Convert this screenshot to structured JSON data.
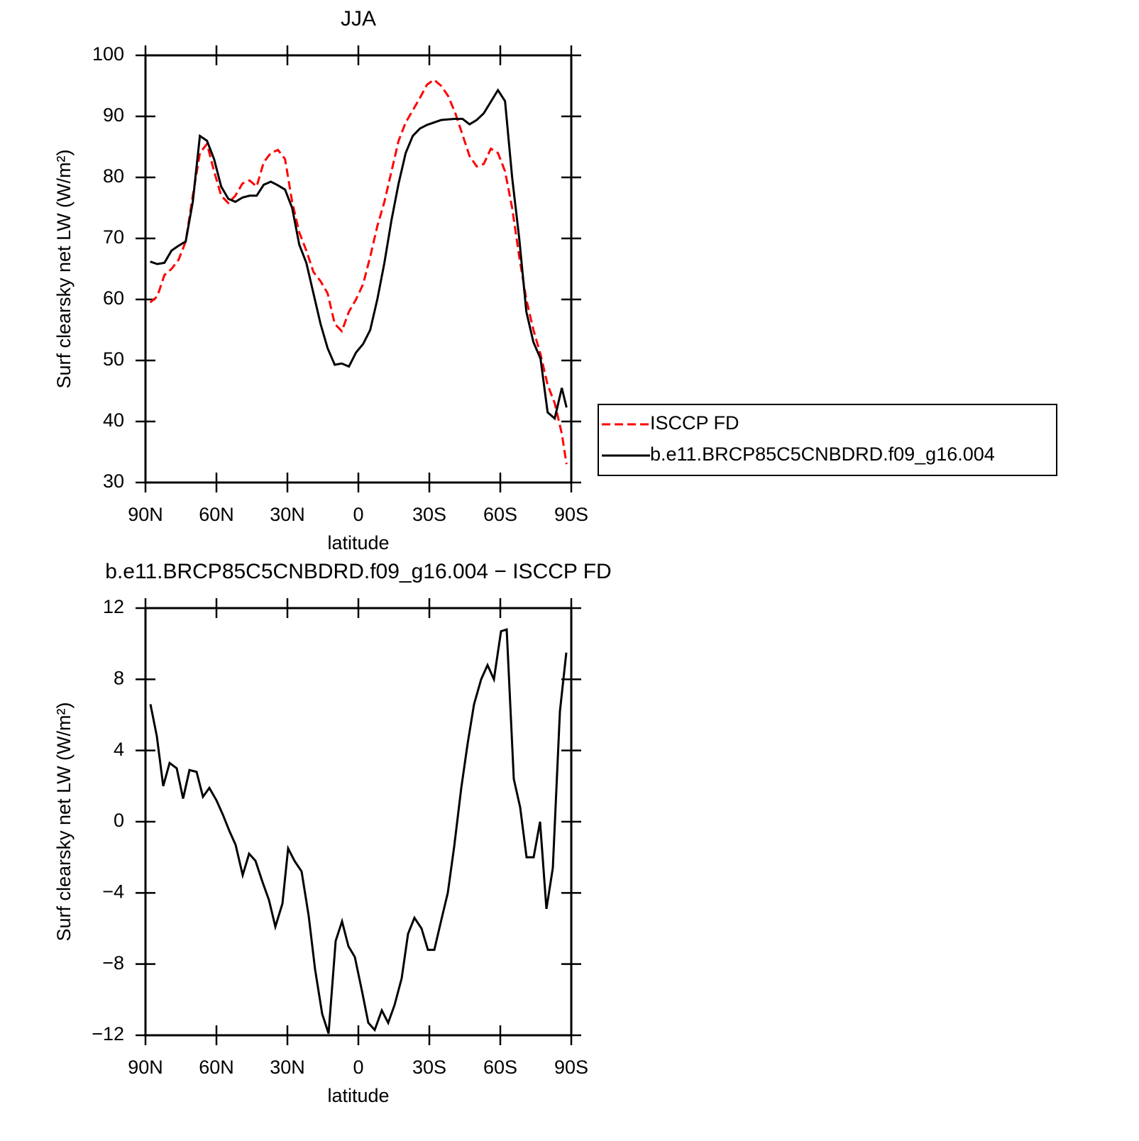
{
  "chart_data": [
    {
      "type": "line",
      "title": "JJA",
      "xlabel": "latitude",
      "ylabel": "Surf clearsky net LW (W/m²)",
      "x": [
        88,
        85,
        82,
        79,
        76,
        73,
        70,
        67,
        64,
        61,
        58,
        55,
        52,
        49,
        46,
        43,
        40,
        37,
        34,
        31,
        28,
        25,
        22,
        19,
        16,
        13,
        10,
        7,
        4,
        1,
        -2,
        -5,
        -8,
        -11,
        -14,
        -17,
        -20,
        -23,
        -26,
        -29,
        -32,
        -35,
        -38,
        -41,
        -44,
        -47,
        -50,
        -53,
        -56,
        -59,
        -62,
        -65,
        -68,
        -71,
        -74,
        -77,
        -80,
        -83,
        -86,
        -88
      ],
      "series": [
        {
          "name": "ISCCP FD",
          "color": "#ff0000",
          "linestyle": "dashed",
          "values": [
            59.5,
            60.5,
            64,
            65,
            66.5,
            69.5,
            77,
            84,
            85.5,
            81,
            77,
            75.8,
            77,
            79,
            79.5,
            78.5,
            82.5,
            84,
            84.5,
            83,
            76,
            71,
            68,
            64.5,
            63,
            61,
            56,
            54.8,
            58,
            60,
            62.5,
            67,
            72,
            76,
            81,
            86,
            89,
            91,
            93,
            95.2,
            96,
            95,
            93.3,
            90.5,
            87,
            83.5,
            81.8,
            82.2,
            84.7,
            84,
            81,
            75,
            67,
            60,
            55,
            51,
            46,
            43,
            38,
            33
          ]
        },
        {
          "name": "b.e11.BRCP85C5CNBDRD.f09_g16.004",
          "color": "#000000",
          "linestyle": "solid",
          "values": [
            66.2,
            65.8,
            66,
            68,
            68.8,
            69.5,
            76,
            86.8,
            86,
            83,
            78.5,
            76.5,
            76,
            76.7,
            77,
            77,
            78.8,
            79.3,
            78.7,
            78,
            75,
            69,
            66,
            61,
            56,
            52,
            49.3,
            49.5,
            49,
            51.3,
            52.7,
            55,
            60,
            66,
            73,
            79,
            84,
            86.8,
            88,
            88.6,
            89,
            89.4,
            89.5,
            89.6,
            89.6,
            88.7,
            89.4,
            90.5,
            92.4,
            94.3,
            92.5,
            80,
            70,
            58,
            53,
            50.3,
            41.5,
            40.5,
            45.5,
            42.3
          ]
        }
      ],
      "xlim": [
        90,
        -90
      ],
      "xticks": [
        {
          "value": 90,
          "label": "90N"
        },
        {
          "value": 60,
          "label": "60N"
        },
        {
          "value": 30,
          "label": "30N"
        },
        0,
        {
          "value": -30,
          "label": "30S"
        },
        {
          "value": -60,
          "label": "60S"
        },
        {
          "value": -90,
          "label": "90S"
        }
      ],
      "ylim": [
        30,
        100
      ],
      "yticks": [
        30,
        40,
        50,
        60,
        70,
        80,
        90,
        100
      ],
      "legend": "right"
    },
    {
      "type": "line",
      "title": "b.e11.BRCP85C5CNBDRD.f09_g16.004 − ISCCP FD",
      "xlabel": "latitude",
      "ylabel": "Surf clearsky net LW (W/m²)",
      "x": [
        87.9,
        85.2,
        82.5,
        79.8,
        76.8,
        74.1,
        71.4,
        68.4,
        65.7,
        63,
        60,
        57.3,
        54.6,
        51.9,
        48.9,
        46.2,
        43.5,
        40.5,
        37.8,
        35.1,
        32.1,
        29.7,
        27,
        24,
        21,
        18.3,
        15.3,
        12.6,
        9.6,
        6.9,
        4.2,
        1.5,
        -1.5,
        -4.2,
        -6.9,
        -9.9,
        -12.6,
        -15.3,
        -18.3,
        -21,
        -23.7,
        -26.7,
        -29.4,
        -32.1,
        -35.1,
        -37.8,
        -40.5,
        -43.5,
        -46.2,
        -48.9,
        -51.9,
        -54.6,
        -57.3,
        -60.3,
        -62.7,
        -65.7,
        -68.4,
        -71.1,
        -74.1,
        -76.8,
        -79.5,
        -82.2,
        -85.2,
        -87.9
      ],
      "series": [
        {
          "color": "#000000",
          "linestyle": "solid",
          "values": [
            6.6,
            4.8,
            2.0,
            3.3,
            3.0,
            1.3,
            2.9,
            2.8,
            1.4,
            1.9,
            1.2,
            0.4,
            -0.5,
            -1.3,
            -3.0,
            -1.8,
            -2.2,
            -3.4,
            -4.4,
            -5.9,
            -4.6,
            -1.5,
            -2.2,
            -2.8,
            -5.3,
            -8.3,
            -10.8,
            -11.9,
            -6.7,
            -5.6,
            -7.0,
            -7.6,
            -9.5,
            -11.3,
            -11.7,
            -10.6,
            -11.3,
            -10.3,
            -8.8,
            -6.3,
            -5.4,
            -6.0,
            -7.2,
            -7.2,
            -5.5,
            -4.0,
            -1.4,
            1.9,
            4.4,
            6.6,
            8.0,
            8.8,
            8.0,
            10.7,
            10.8,
            2.4,
            0.8,
            -2.0,
            -2.0,
            0.0,
            -4.9,
            -2.6,
            6.2,
            9.5
          ]
        }
      ],
      "xlim": [
        90,
        -90
      ],
      "xticks": [
        {
          "value": 90,
          "label": "90N"
        },
        {
          "value": 60,
          "label": "60N"
        },
        {
          "value": 30,
          "label": "30N"
        },
        0,
        {
          "value": -30,
          "label": "30S"
        },
        {
          "value": -60,
          "label": "60S"
        },
        {
          "value": -90,
          "label": "90S"
        }
      ],
      "ylim": [
        -12,
        12
      ],
      "yticks": [
        {
          "value": -12,
          "label": "−12"
        },
        {
          "value": -8,
          "label": "−8"
        },
        {
          "value": -4,
          "label": "−4"
        },
        0,
        4,
        8,
        12
      ]
    }
  ]
}
